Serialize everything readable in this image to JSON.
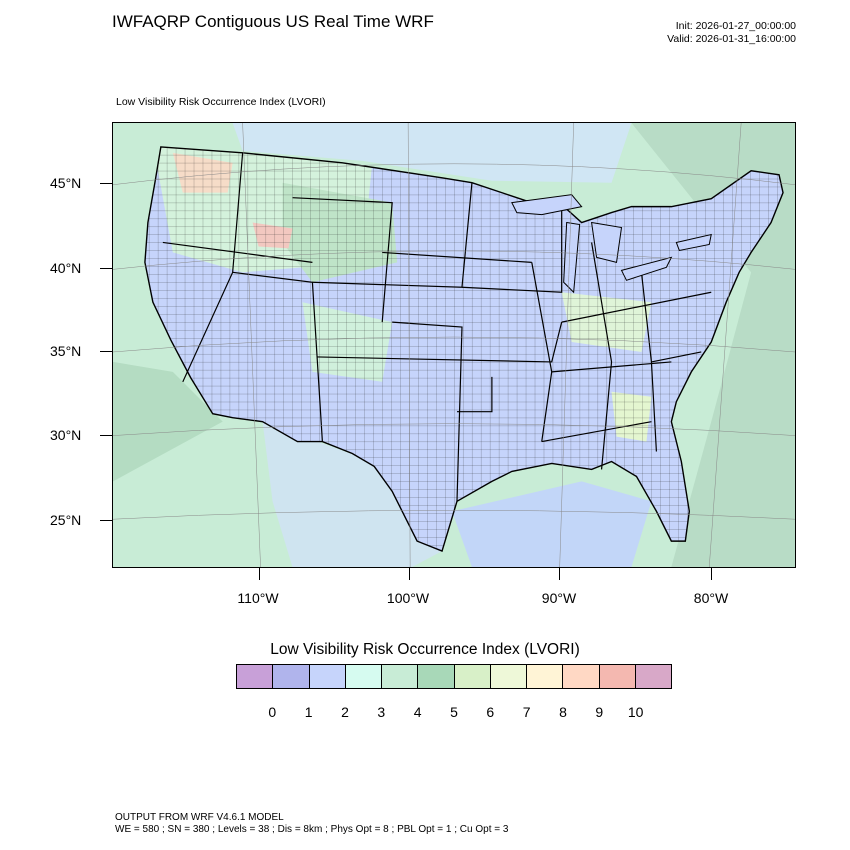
{
  "header": {
    "title": "IWFAQRP Contiguous US Real Time WRF",
    "init": "Init: 2026-01-27_00:00:00",
    "valid": "Valid: 2026-01-31_16:00:00"
  },
  "map": {
    "field_label": "Low Visibility Risk Occurrence Index   (LVORI)",
    "lat_labels": [
      "45°N",
      "40°N",
      "35°N",
      "30°N",
      "25°N"
    ],
    "lon_labels": [
      "110°W",
      "100°W",
      "90°W",
      "80°W"
    ]
  },
  "legend": {
    "title": "Low Visibility Risk Occurrence Index  (LVORI)",
    "colors": [
      "#c8a0d8",
      "#b0b4ec",
      "#c6d4fb",
      "#d6fbf0",
      "#c8ecd6",
      "#a8d8b8",
      "#d8f0c8",
      "#eef8d8",
      "#fff4d6",
      "#ffd8c4",
      "#f4b8b0",
      "#d8a8c8"
    ],
    "labels": [
      "0",
      "1",
      "2",
      "3",
      "4",
      "5",
      "6",
      "7",
      "8",
      "9",
      "10"
    ]
  },
  "footer": {
    "line1": "OUTPUT FROM WRF V4.6.1 MODEL",
    "line2": "WE = 580 ; SN = 380 ; Levels = 38 ; Dis = 8km ; Phys Opt = 8 ; PBL Opt = 1 ; Cu Opt = 3"
  }
}
